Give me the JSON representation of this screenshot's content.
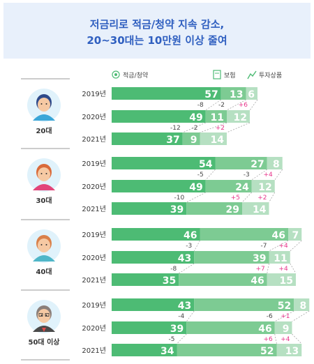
{
  "title": {
    "line1": "저금리로 적금/청약 지속 감소,",
    "line2": "20~30대는 10만원 이상 줄여"
  },
  "colors": {
    "savings": "#4dbb74",
    "insurance": "#7dcb93",
    "investment": "#b6e0c2",
    "title_text": "#2f5fc0",
    "title_bg": "#e8f0fb",
    "positive_diff": "#e8338a"
  },
  "legend": [
    {
      "name": "적금/청약",
      "icon": "savings-icon"
    },
    {
      "name": "보험",
      "icon": "insurance-icon"
    },
    {
      "name": "투자상품",
      "icon": "investment-icon"
    }
  ],
  "chart_data": {
    "type": "bar",
    "orientation": "horizontal",
    "stacked": true,
    "unit": "만원",
    "series_names": [
      "적금/청약",
      "보험",
      "투자상품"
    ],
    "groups": [
      {
        "name": "20대",
        "avatar": "young-man-avatar",
        "rows": [
          {
            "year": "2019년",
            "values": [
              57,
              13,
              6
            ]
          },
          {
            "year": "2020년",
            "values": [
              49,
              11,
              12
            ]
          },
          {
            "year": "2021년",
            "values": [
              37,
              9,
              14
            ]
          }
        ],
        "changes": [
          {
            "savings": "-8",
            "insurance": "-2",
            "investment": "+6"
          },
          {
            "savings": "-12",
            "insurance": "-2",
            "investment": "+2"
          }
        ]
      },
      {
        "name": "30대",
        "avatar": "young-woman-avatar",
        "rows": [
          {
            "year": "2019년",
            "values": [
              54,
              27,
              8
            ]
          },
          {
            "year": "2020년",
            "values": [
              49,
              24,
              12
            ]
          },
          {
            "year": "2021년",
            "values": [
              39,
              29,
              14
            ]
          }
        ],
        "changes": [
          {
            "savings": "-5",
            "insurance": "-3",
            "investment": "+4"
          },
          {
            "savings": "-10",
            "insurance": "+5",
            "investment": "+2"
          }
        ]
      },
      {
        "name": "40대",
        "avatar": "middle-aged-woman-avatar",
        "rows": [
          {
            "year": "2019년",
            "values": [
              46,
              46,
              7
            ]
          },
          {
            "year": "2020년",
            "values": [
              43,
              39,
              11
            ]
          },
          {
            "year": "2021년",
            "values": [
              35,
              46,
              15
            ]
          }
        ],
        "changes": [
          {
            "savings": "-3",
            "insurance": "-7",
            "investment": "+4"
          },
          {
            "savings": "-8",
            "insurance": "+7",
            "investment": "+4"
          }
        ]
      },
      {
        "name": "50대 이상",
        "avatar": "older-man-avatar",
        "rows": [
          {
            "year": "2019년",
            "values": [
              43,
              52,
              8
            ]
          },
          {
            "year": "2020년",
            "values": [
              39,
              46,
              9
            ]
          },
          {
            "year": "2021년",
            "values": [
              34,
              52,
              13
            ]
          }
        ],
        "changes": [
          {
            "savings": "-4",
            "insurance": "-6",
            "investment": "+1"
          },
          {
            "savings": "-5",
            "insurance": "+6",
            "investment": "+4"
          }
        ]
      }
    ]
  }
}
